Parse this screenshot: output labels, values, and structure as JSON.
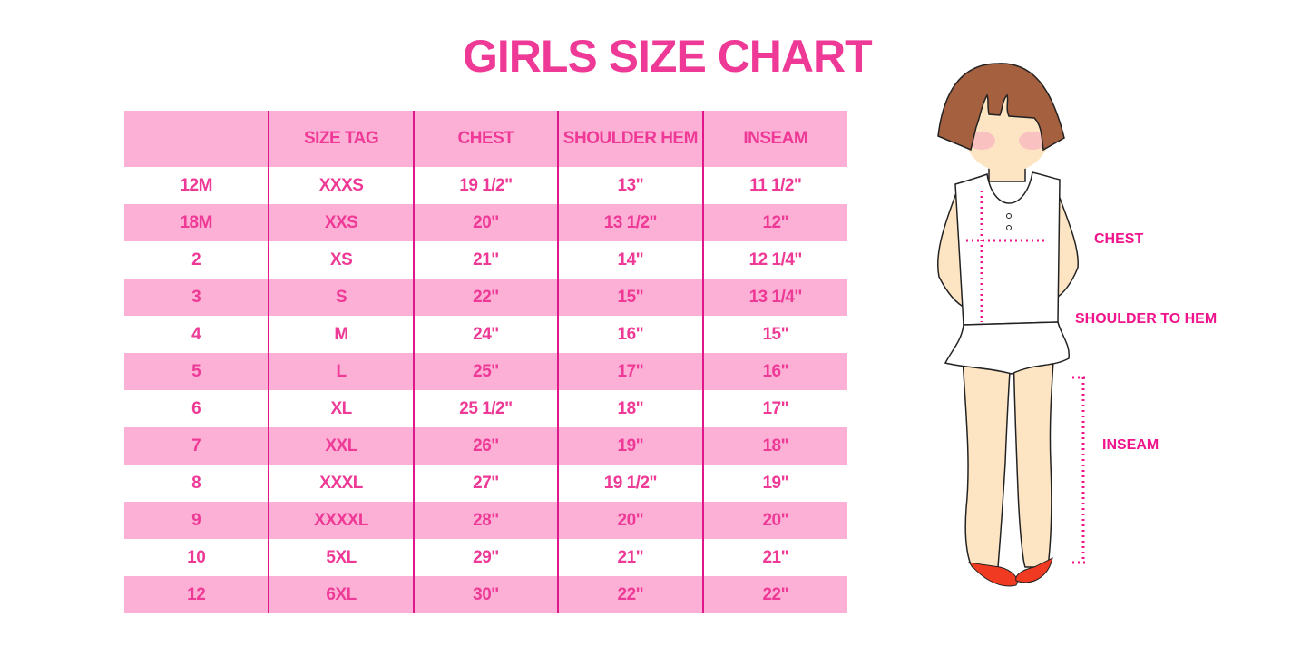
{
  "title": "GIRLS SIZE CHART",
  "table": {
    "headers": [
      "",
      "SIZE TAG",
      "CHEST",
      "SHOULDER HEM",
      "INSEAM"
    ],
    "rows": [
      [
        "12M",
        "XXXS",
        "19 1/2\"",
        "13\"",
        "11 1/2\""
      ],
      [
        "18M",
        "XXS",
        "20\"",
        "13 1/2\"",
        "12\""
      ],
      [
        "2",
        "XS",
        "21\"",
        "14\"",
        "12 1/4\""
      ],
      [
        "3",
        "S",
        "22\"",
        "15\"",
        "13 1/4\""
      ],
      [
        "4",
        "M",
        "24\"",
        "16\"",
        "15\""
      ],
      [
        "5",
        "L",
        "25\"",
        "17\"",
        "16\""
      ],
      [
        "6",
        "XL",
        "25 1/2\"",
        "18\"",
        "17\""
      ],
      [
        "7",
        "XXL",
        "26\"",
        "19\"",
        "18\""
      ],
      [
        "8",
        "XXXL",
        "27\"",
        "19 1/2\"",
        "19\""
      ],
      [
        "9",
        "XXXXL",
        "28\"",
        "20\"",
        "20\""
      ],
      [
        "10",
        "5XL",
        "29\"",
        "21\"",
        "21\""
      ],
      [
        "12",
        "6XL",
        "30\"",
        "22\"",
        "22\""
      ]
    ]
  },
  "figure": {
    "labels": {
      "chest": "CHEST",
      "shoulder_to_hem": "SHOULDER TO HEM",
      "inseam": "INSEAM"
    }
  },
  "colors": {
    "accent": "#ee3a96",
    "row_pink": "#fdb0d6",
    "divider": "#e0168a"
  }
}
